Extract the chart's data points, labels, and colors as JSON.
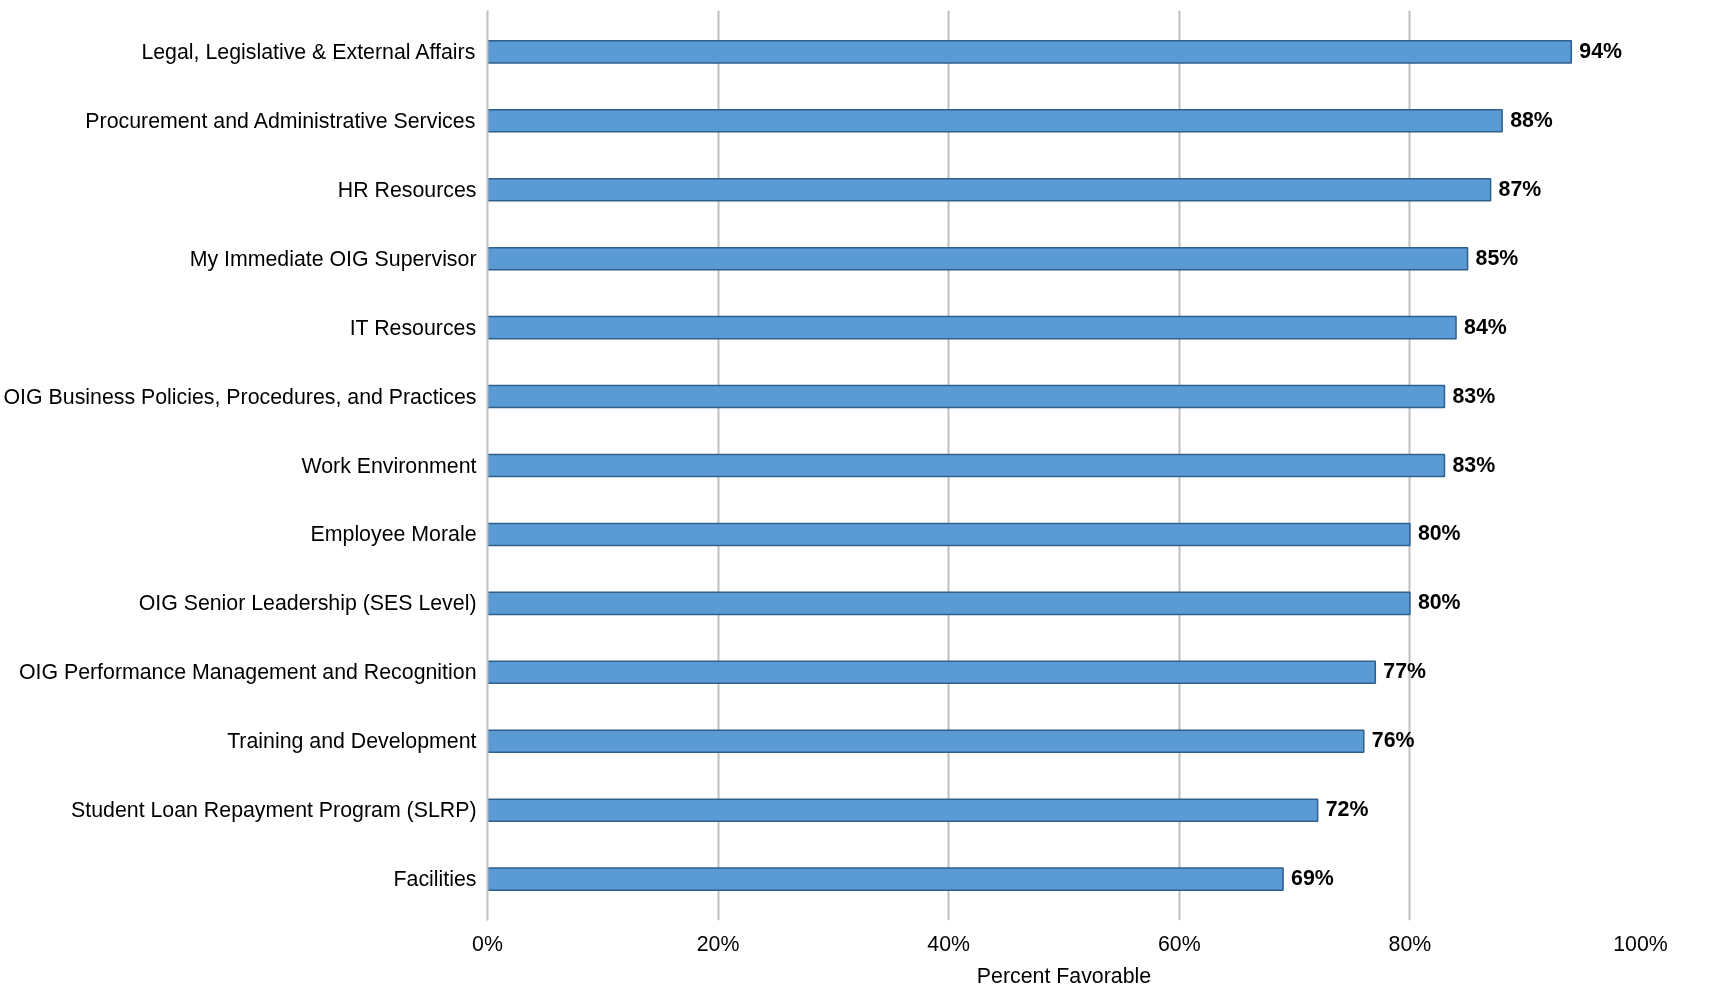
{
  "chart_data": {
    "type": "bar",
    "orientation": "horizontal",
    "xlabel": "Percent Favorable",
    "categories": [
      "Legal, Legislative & External Affairs",
      "Procurement and Administrative Services",
      "HR Resources",
      "My Immediate OIG Supervisor",
      "IT Resources",
      "OIG Business Policies, Procedures, and Practices",
      "Work Environment",
      "Employee Morale",
      "OIG Senior Leadership (SES Level)",
      "OIG Performance Management and Recognition",
      "Training and Development",
      "Student Loan Repayment Program (SLRP)",
      "Facilities"
    ],
    "values": [
      94,
      88,
      87,
      85,
      84,
      83,
      83,
      80,
      80,
      77,
      76,
      72,
      69
    ],
    "value_labels": [
      "94%",
      "88%",
      "87%",
      "85%",
      "84%",
      "83%",
      "83%",
      "80%",
      "80%",
      "77%",
      "76%",
      "72%",
      "69%"
    ],
    "color": "#5b9bd5",
    "xlim": [
      0,
      100
    ],
    "xticks": [
      {
        "value": 0,
        "label": "0%"
      },
      {
        "value": 20,
        "label": "20%"
      },
      {
        "value": 40,
        "label": "40%"
      },
      {
        "value": 60,
        "label": "60%"
      },
      {
        "value": 80,
        "label": "80%"
      },
      {
        "value": 100,
        "label": "100%"
      }
    ],
    "grid": "x"
  }
}
